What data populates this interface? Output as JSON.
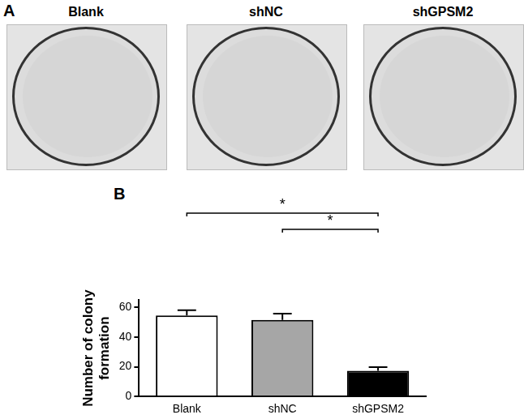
{
  "figure": {
    "panel_a": {
      "label": "A",
      "images": [
        "Blank",
        "shNC",
        "shGPSM2"
      ]
    },
    "panel_b_label": "B"
  },
  "chart_data": {
    "type": "bar",
    "y_label": "Number of colony formation",
    "categories": [
      "Blank",
      "shNC",
      "shGPSM2"
    ],
    "values": [
      54.5,
      51.5,
      17.3
    ],
    "errors": [
      3.5,
      4.2,
      2.5
    ],
    "colors": [
      "#ffffff",
      "#a6a6a6",
      "#000000"
    ],
    "ylim": [
      0,
      65
    ],
    "yticks": [
      0,
      20,
      40,
      60
    ],
    "grid": false,
    "annotations": [
      {
        "from": "Blank",
        "to": "shGPSM2",
        "label": "*"
      },
      {
        "from": "shNC",
        "to": "shGPSM2",
        "label": "*"
      }
    ]
  }
}
